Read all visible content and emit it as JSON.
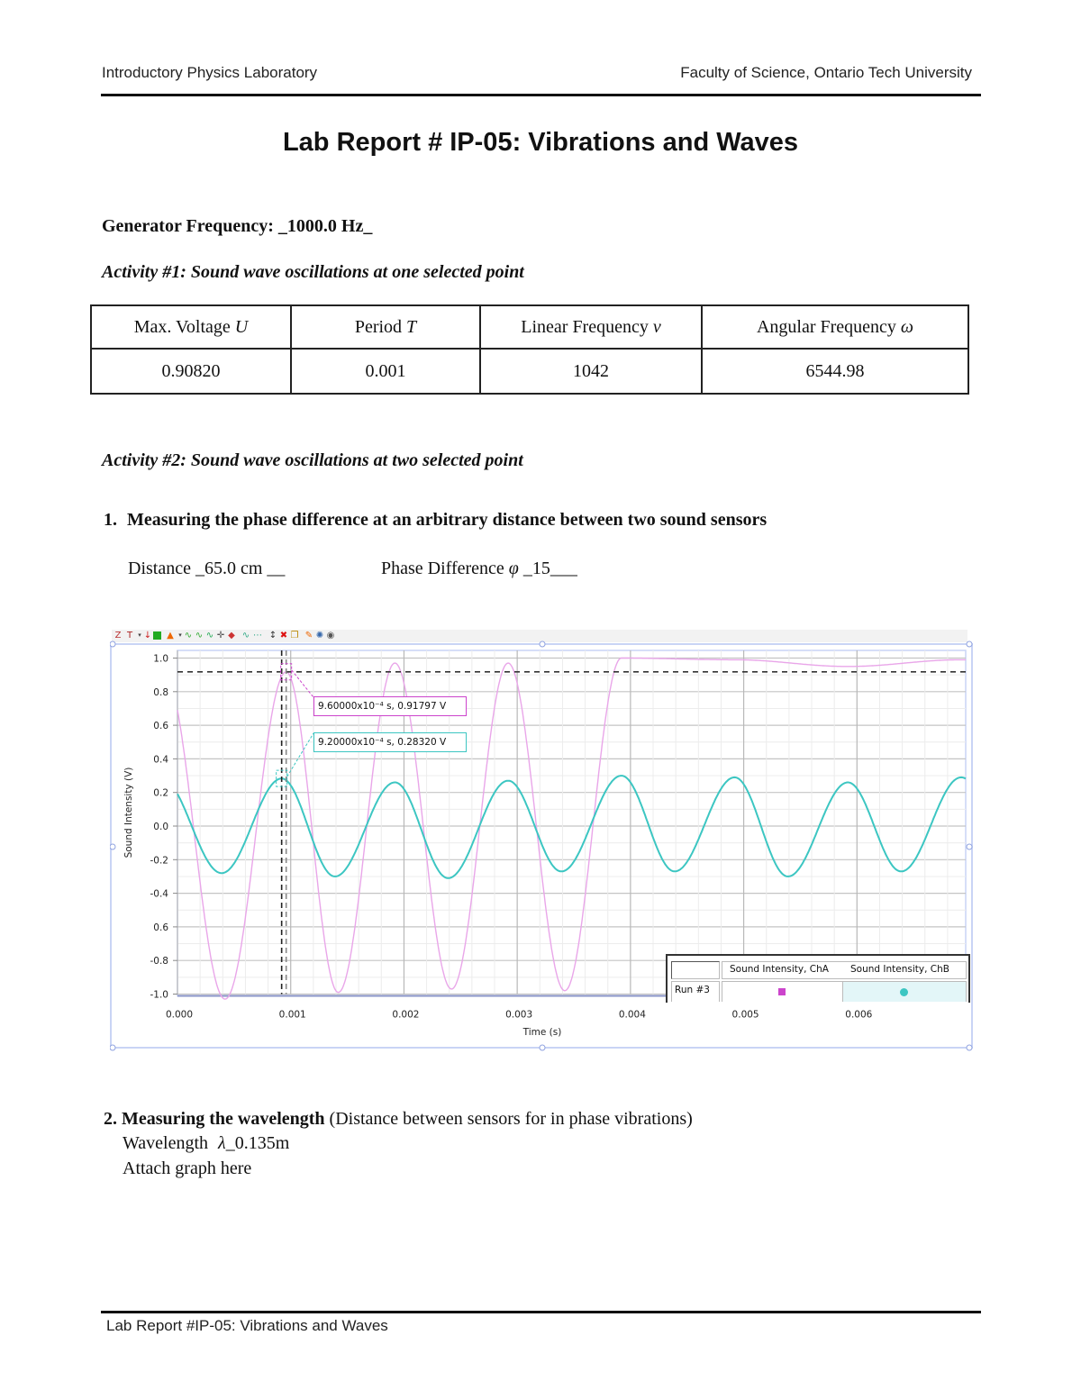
{
  "header": {
    "left": "Introductory Physics Laboratory",
    "right": "Faculty of Science, Ontario Tech University"
  },
  "title": "Lab Report # IP-05: Vibrations and Waves",
  "generator": {
    "label": "Generator Frequency:",
    "value": "_1000.0 Hz_"
  },
  "activity1": {
    "heading": "Activity #1: Sound wave oscillations at one selected point",
    "table": {
      "headers": [
        {
          "text": "Max. Voltage ",
          "symbol": "U"
        },
        {
          "text": "Period ",
          "symbol": "T"
        },
        {
          "text": "Linear Frequency ",
          "symbol": "v"
        },
        {
          "text": "Angular Frequency ",
          "symbol": "ω"
        }
      ],
      "values": [
        "0.90820",
        "0.001",
        "1042",
        "6544.98"
      ]
    }
  },
  "activity2": {
    "heading": "Activity #2: Sound wave oscillations at two selected point",
    "item1": {
      "number": "1.",
      "title": "Measuring the phase difference at an arbitrary distance between two sound sensors",
      "distance_label": "Distance",
      "distance_value": "_65.0 cm __",
      "phase_label": "Phase Difference",
      "phase_symbol": "φ",
      "phase_value": "_15___"
    },
    "item2": {
      "number": "2.",
      "title": "Measuring the wavelength",
      "subtitle": "(Distance between sensors for in phase vibrations)",
      "wavelength_label": "Wavelength",
      "wavelength_symbol": "λ",
      "wavelength_value": "_0.135m",
      "attach_text": "Attach graph here"
    }
  },
  "toolbar": {
    "icons": [
      "scale-to-fit-icon",
      "add-annotation-icon",
      "dropdown-arrow-icon",
      "select-data-icon",
      "data-table-icon",
      "color-icon",
      "dropdown-arrow-icon",
      "smart-tool-icon",
      "slope-icon",
      "area-icon",
      "crosshair-icon",
      "statistics-icon",
      "curve-fit-icon",
      "line-fit-icon",
      "delta-tool-icon",
      "delete-icon",
      "copy-icon",
      "pin-icon",
      "settings-icon",
      "view-icon"
    ]
  },
  "chart_data": {
    "type": "line",
    "title": "",
    "xlabel": "Time (s)",
    "ylabel": "Sound Intensity (V)",
    "xlim": [
      0.0,
      0.00696
    ],
    "ylim": [
      -1.05,
      1.05
    ],
    "x_ticks": [
      "0.000",
      "0.001",
      "0.002",
      "0.003",
      "0.004",
      "0.005",
      "0.006"
    ],
    "y_ticks": [
      "1.0",
      "0.8",
      "0.6",
      "0.4",
      "0.2",
      "0.0",
      "-0.2",
      "-0.4",
      "-0.6",
      "-0.8",
      "-1.0"
    ],
    "y_ticks_rendered": [
      "1.0",
      "0.8",
      "0.6",
      "0.4",
      "0.2",
      "0.0",
      "-0.2",
      "-0.4",
      "0.6",
      "-0.8",
      "-1.0"
    ],
    "grid": true,
    "legend_position": "bottom-right",
    "legend": {
      "run_label": "Run #3",
      "columns": [
        "Sound Intensity, ChA",
        "Sound Intensity, ChB"
      ]
    },
    "series": [
      {
        "name": "Sound Intensity, ChA",
        "color": "#e9a6e9",
        "marker_color": "#cc44cc",
        "frequency_hz": 1000,
        "amplitude_v": 1.0,
        "peaks": [
          {
            "t": 0.00096,
            "v": 0.918
          },
          {
            "t": 0.00192,
            "v": 0.97
          },
          {
            "t": 0.00292,
            "v": 0.97
          },
          {
            "t": 0.00392,
            "v": 1.0
          },
          {
            "t": 0.00492,
            "v": 0.99
          },
          {
            "t": 0.00592,
            "v": 0.95
          }
        ],
        "troughs": [
          {
            "t": 0.00042,
            "v": -1.03
          },
          {
            "t": 0.00142,
            "v": -0.99
          },
          {
            "t": 0.00242,
            "v": -0.97
          },
          {
            "t": 0.00342,
            "v": -0.98
          }
        ]
      },
      {
        "name": "Sound Intensity, ChB",
        "color": "#3cc6c2",
        "marker_color": "#3cc6c2",
        "frequency_hz": 1000,
        "amplitude_v": 0.28,
        "peaks": [
          {
            "t": 0.00092,
            "v": 0.283
          },
          {
            "t": 0.00192,
            "v": 0.26
          },
          {
            "t": 0.00292,
            "v": 0.27
          },
          {
            "t": 0.00392,
            "v": 0.3
          },
          {
            "t": 0.00492,
            "v": 0.29
          },
          {
            "t": 0.00592,
            "v": 0.26
          },
          {
            "t": 0.00692,
            "v": 0.29
          }
        ],
        "troughs": [
          {
            "t": 0.00039,
            "v": -0.28
          },
          {
            "t": 0.00139,
            "v": -0.3
          },
          {
            "t": 0.00239,
            "v": -0.31
          },
          {
            "t": 0.00339,
            "v": -0.27
          },
          {
            "t": 0.00439,
            "v": -0.27
          },
          {
            "t": 0.00539,
            "v": -0.3
          },
          {
            "t": 0.00639,
            "v": -0.27
          }
        ]
      }
    ],
    "annotations": [
      {
        "series": "Sound Intensity, ChA",
        "text": "9.60000x10⁻⁴ s, 0.91797 V",
        "color": "#cc44cc",
        "t": 0.00096,
        "v": 0.91797
      },
      {
        "series": "Sound Intensity, ChB",
        "text": "9.20000x10⁻⁴ s, 0.28320 V",
        "color": "#3cc6c2",
        "t": 0.00092,
        "v": 0.2832
      }
    ],
    "reference_lines": [
      {
        "type": "horizontal",
        "style": "dashed",
        "v": 0.918
      },
      {
        "type": "vertical",
        "style": "dashed",
        "t": 0.00092
      },
      {
        "type": "vertical",
        "style": "dashed",
        "t": 0.00096
      }
    ]
  },
  "footer": {
    "text": "Lab Report #IP-05: Vibrations and Waves"
  }
}
